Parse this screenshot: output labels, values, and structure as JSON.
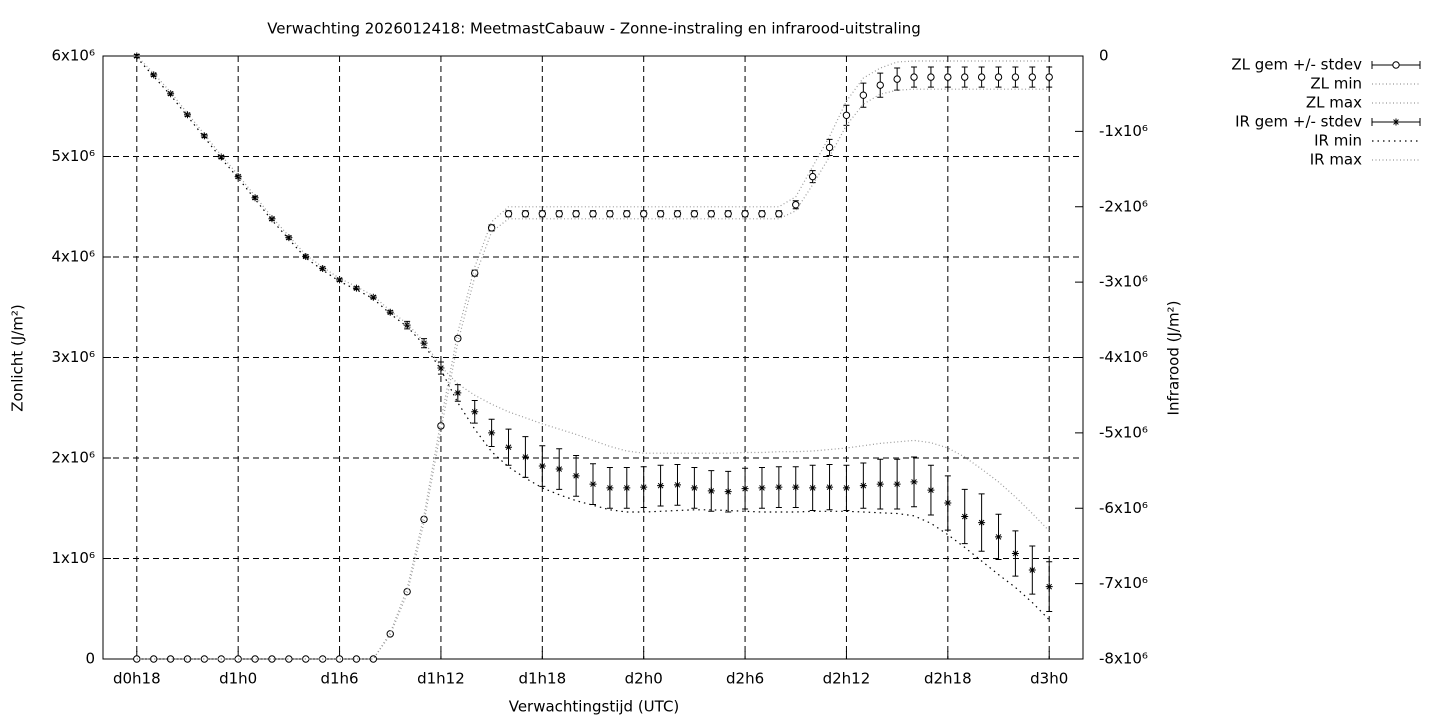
{
  "chart_data": {
    "type": "errorbar",
    "title": "Verwachting 2026012418: MeetmastCabauw - Zonne-instraling en infrarood-uitstraling",
    "x_label": "Verwachtingstijd (UTC)",
    "y_label": "Zonlicht (J/m²)",
    "y2_label": "Infrarood (J/m²)",
    "x": [
      18,
      19,
      20,
      21,
      22,
      23,
      24,
      25,
      26,
      27,
      28,
      29,
      30,
      31,
      32,
      33,
      34,
      35,
      36,
      37,
      38,
      39,
      40,
      41,
      42,
      43,
      44,
      45,
      46,
      47,
      48,
      49,
      50,
      51,
      52,
      53,
      54,
      55,
      56,
      57,
      58,
      59,
      60,
      61,
      62,
      63,
      64,
      65,
      66,
      67,
      68,
      69,
      70,
      71,
      72
    ],
    "xlim": [
      16,
      74
    ],
    "xticks": [
      {
        "value": 18,
        "label": "d0h18"
      },
      {
        "value": 24,
        "label": "d1h0"
      },
      {
        "value": 30,
        "label": "d1h6"
      },
      {
        "value": 36,
        "label": "d1h12"
      },
      {
        "value": 42,
        "label": "d1h18"
      },
      {
        "value": 48,
        "label": "d2h0"
      },
      {
        "value": 54,
        "label": "d2h6"
      },
      {
        "value": 60,
        "label": "d2h12"
      },
      {
        "value": 66,
        "label": "d2h18"
      },
      {
        "value": 72,
        "label": "d3h0"
      }
    ],
    "ylim": [
      0,
      6000000
    ],
    "yticks": [
      0,
      {
        "value": 1000000,
        "label": "1x10⁶"
      },
      {
        "value": 2000000,
        "label": "2x10⁶"
      },
      {
        "value": 3000000,
        "label": "3x10⁶"
      },
      {
        "value": 4000000,
        "label": "4x10⁶"
      },
      {
        "value": 5000000,
        "label": "5x10⁶"
      },
      {
        "value": 6000000,
        "label": "6x10⁶"
      }
    ],
    "y2lim": [
      -8000000,
      0
    ],
    "y2ticks": [
      {
        "value": -8000000,
        "label": "-8x10⁶"
      },
      {
        "value": -7000000,
        "label": "-7x10⁶"
      },
      {
        "value": -6000000,
        "label": "-6x10⁶"
      },
      {
        "value": -5000000,
        "label": "-5x10⁶"
      },
      {
        "value": -4000000,
        "label": "-4x10⁶"
      },
      {
        "value": -3000000,
        "label": "-3x10⁶"
      },
      {
        "value": -2000000,
        "label": "-2x10⁶"
      },
      {
        "value": -1000000,
        "label": "-1x10⁶"
      },
      0
    ],
    "grid": true,
    "legend": "outside-right",
    "series": [
      {
        "name": "ZL gem +/- stdev",
        "color": "#000000",
        "style": "points",
        "marker": "circle",
        "values": [
          0,
          0,
          0,
          0,
          0,
          0,
          0,
          0,
          0,
          0,
          0,
          0,
          0,
          0,
          0,
          250000,
          670000,
          1390000,
          2320000,
          3190000,
          3840000,
          4290000,
          4430000,
          4430000,
          4430000,
          4430000,
          4430000,
          4430000,
          4430000,
          4430000,
          4430000,
          4430000,
          4430000,
          4430000,
          4430000,
          4430000,
          4430000,
          4430000,
          4430000,
          4520000,
          4800000,
          5090000,
          5410000,
          5610000,
          5710000,
          5770000,
          5790000,
          5790000,
          5790000,
          5790000,
          5790000,
          5790000,
          5790000,
          5790000,
          5790000
        ],
        "errors": [
          0,
          0,
          0,
          0,
          0,
          0,
          0,
          0,
          0,
          0,
          0,
          0,
          0,
          0,
          0,
          10000,
          10000,
          20000,
          20000,
          20000,
          30000,
          30000,
          30000,
          30000,
          30000,
          30000,
          30000,
          30000,
          30000,
          30000,
          30000,
          30000,
          30000,
          30000,
          30000,
          30000,
          30000,
          30000,
          30000,
          40000,
          60000,
          80000,
          100000,
          120000,
          120000,
          110000,
          100000,
          100000,
          100000,
          100000,
          100000,
          100000,
          100000,
          100000,
          100000
        ]
      },
      {
        "name": "ZL min",
        "color": "#999999",
        "style": "dotted",
        "values": [
          0,
          0,
          0,
          0,
          0,
          0,
          0,
          0,
          0,
          0,
          0,
          0,
          0,
          0,
          0,
          240000,
          650000,
          1360000,
          2280000,
          3150000,
          3800000,
          4250000,
          4380000,
          4380000,
          4380000,
          4380000,
          4380000,
          4380000,
          4380000,
          4380000,
          4380000,
          4380000,
          4380000,
          4380000,
          4380000,
          4380000,
          4380000,
          4380000,
          4380000,
          4460000,
          4720000,
          5000000,
          5310000,
          5520000,
          5620000,
          5660000,
          5670000,
          5670000,
          5670000,
          5670000,
          5670000,
          5670000,
          5670000,
          5670000,
          5670000
        ]
      },
      {
        "name": "ZL max",
        "color": "#999999",
        "style": "dotted",
        "values": [
          0,
          0,
          0,
          0,
          0,
          0,
          0,
          0,
          0,
          0,
          0,
          0,
          0,
          0,
          0,
          260000,
          700000,
          1430000,
          2370000,
          3250000,
          3900000,
          4350000,
          4500000,
          4500000,
          4500000,
          4500000,
          4500000,
          4500000,
          4500000,
          4500000,
          4500000,
          4500000,
          4500000,
          4500000,
          4500000,
          4500000,
          4500000,
          4500000,
          4500000,
          4600000,
          4900000,
          5200000,
          5550000,
          5780000,
          5880000,
          5940000,
          5950000,
          5950000,
          5950000,
          5950000,
          5950000,
          5950000,
          5950000,
          5950000,
          5950000
        ]
      },
      {
        "name": "IR gem +/- stdev",
        "color": "#000000",
        "style": "points",
        "marker": "star",
        "axis": "y2",
        "values": [
          0,
          -250000,
          -500000,
          -780000,
          -1060000,
          -1340000,
          -1600000,
          -1880000,
          -2160000,
          -2410000,
          -2660000,
          -2820000,
          -2970000,
          -3080000,
          -3200000,
          -3400000,
          -3570000,
          -3810000,
          -4140000,
          -4470000,
          -4720000,
          -5000000,
          -5190000,
          -5320000,
          -5440000,
          -5480000,
          -5570000,
          -5680000,
          -5730000,
          -5730000,
          -5720000,
          -5700000,
          -5690000,
          -5730000,
          -5770000,
          -5780000,
          -5740000,
          -5730000,
          -5720000,
          -5720000,
          -5730000,
          -5720000,
          -5730000,
          -5700000,
          -5680000,
          -5680000,
          -5650000,
          -5760000,
          -5930000,
          -6110000,
          -6190000,
          -6380000,
          -6600000,
          -6820000,
          -7040000
        ],
        "errors": [
          20000,
          20000,
          20000,
          20000,
          20000,
          20000,
          20000,
          20000,
          20000,
          20000,
          20000,
          20000,
          20000,
          20000,
          20000,
          20000,
          50000,
          60000,
          80000,
          110000,
          150000,
          180000,
          240000,
          270000,
          270000,
          270000,
          270000,
          270000,
          270000,
          270000,
          270000,
          270000,
          270000,
          270000,
          270000,
          270000,
          270000,
          270000,
          270000,
          270000,
          300000,
          300000,
          300000,
          300000,
          330000,
          330000,
          330000,
          330000,
          360000,
          360000,
          380000,
          300000,
          300000,
          320000,
          330000
        ]
      },
      {
        "name": "IR min",
        "color": "#000000",
        "style": "dotted",
        "axis": "y2",
        "values": [
          -20000,
          -270000,
          -520000,
          -800000,
          -1080000,
          -1360000,
          -1620000,
          -1900000,
          -2180000,
          -2430000,
          -2680000,
          -2840000,
          -2990000,
          -3100000,
          -3220000,
          -3420000,
          -3590000,
          -3830000,
          -4160000,
          -4600000,
          -4950000,
          -5250000,
          -5450000,
          -5600000,
          -5730000,
          -5820000,
          -5900000,
          -5960000,
          -6020000,
          -6050000,
          -6050000,
          -6040000,
          -6030000,
          -6020000,
          -6020000,
          -6030000,
          -6040000,
          -6050000,
          -6050000,
          -6050000,
          -6040000,
          -6040000,
          -6040000,
          -6050000,
          -6060000,
          -6070000,
          -6100000,
          -6200000,
          -6350000,
          -6520000,
          -6700000,
          -6880000,
          -7050000,
          -7250000,
          -7480000
        ]
      },
      {
        "name": "IR max",
        "color": "#999999",
        "style": "dotted",
        "axis": "y2",
        "values": [
          0,
          -230000,
          -480000,
          -760000,
          -1040000,
          -1320000,
          -1580000,
          -1860000,
          -2140000,
          -2390000,
          -2640000,
          -2800000,
          -2950000,
          -3060000,
          -3180000,
          -3380000,
          -3550000,
          -3790000,
          -4120000,
          -4350000,
          -4500000,
          -4620000,
          -4720000,
          -4800000,
          -4880000,
          -4950000,
          -5020000,
          -5100000,
          -5180000,
          -5240000,
          -5270000,
          -5270000,
          -5270000,
          -5270000,
          -5270000,
          -5270000,
          -5260000,
          -5260000,
          -5250000,
          -5250000,
          -5240000,
          -5220000,
          -5200000,
          -5170000,
          -5140000,
          -5120000,
          -5100000,
          -5130000,
          -5200000,
          -5320000,
          -5480000,
          -5650000,
          -5850000,
          -6070000,
          -6300000
        ]
      }
    ]
  }
}
